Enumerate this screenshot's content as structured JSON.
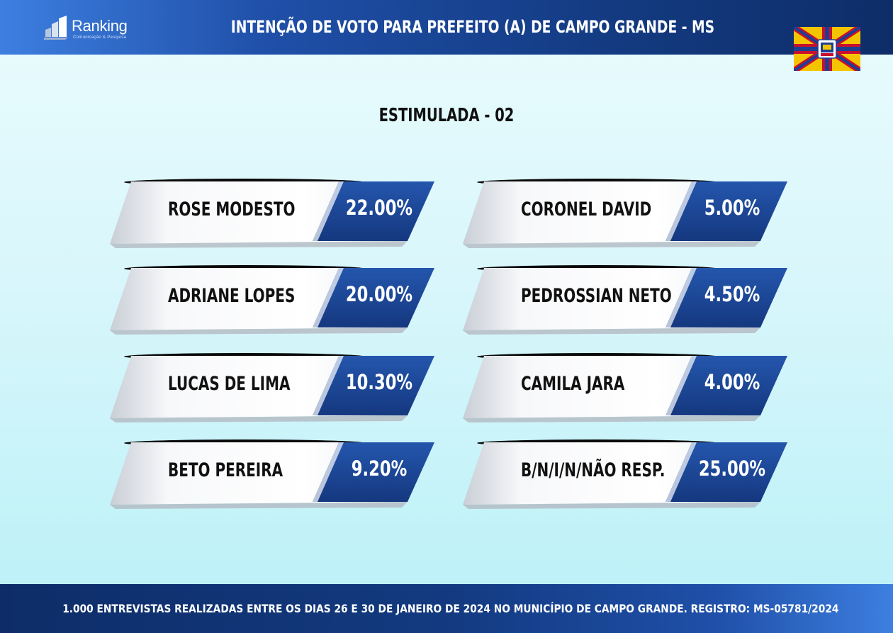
{
  "header": {
    "logo_text": "Ranking",
    "logo_subtext": "Comunicação & Pesquisa",
    "title": "INTENÇÃO DE VOTO PARA PREFEITO (A) DE CAMPO GRANDE - MS",
    "flag_icon": "campo-grande-flag-icon"
  },
  "chart_data": {
    "type": "table",
    "title": "INTENÇÃO DE VOTO PARA PREFEITO (A) DE CAMPO GRANDE - MS",
    "subtitle": "ESTIMULADA - 02",
    "candidates": [
      {
        "name": "ROSE MODESTO",
        "value": 22.0,
        "label": "22.00%"
      },
      {
        "name": "ADRIANE LOPES",
        "value": 20.0,
        "label": "20.00%"
      },
      {
        "name": "LUCAS DE LIMA",
        "value": 10.3,
        "label": "10.30%"
      },
      {
        "name": "BETO PEREIRA",
        "value": 9.2,
        "label": "9.20%"
      },
      {
        "name": "CORONEL DAVID",
        "value": 5.0,
        "label": "5.00%"
      },
      {
        "name": "PEDROSSIAN NETO",
        "value": 4.5,
        "label": "4.50%"
      },
      {
        "name": "CAMILA JARA",
        "value": 4.0,
        "label": "4.00%"
      },
      {
        "name": "B/N/I/N/NÃO RESP.",
        "value": 25.0,
        "label": "25.00%"
      }
    ]
  },
  "colors": {
    "header_dark": "#0e2d68",
    "header_light": "#3d7fe0",
    "percent_panel": "#1b4597",
    "background": "#c8f3f9",
    "flag_yellow": "#f5c400",
    "flag_red": "#c8102e",
    "flag_blue": "#1c3f94"
  },
  "footer": {
    "text": "1.000 ENTREVISTAS REALIZADAS ENTRE OS DIAS 26 E 30 DE JANEIRO DE 2024 NO MUNICÍPIO DE CAMPO GRANDE. REGISTRO: MS-05781/2024"
  }
}
